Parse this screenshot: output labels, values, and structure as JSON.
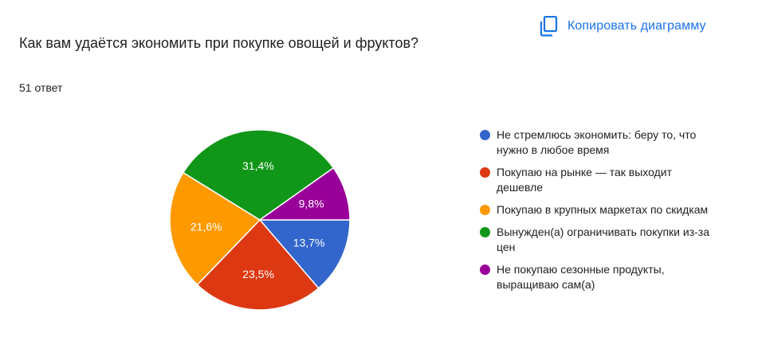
{
  "header": {
    "copy_label": "Копировать диаграмму",
    "copy_icon": "copy-icon"
  },
  "question": {
    "title": "Как вам удаётся экономить при покупке овощей и фруктов?",
    "responses": "51 ответ"
  },
  "chart_data": {
    "type": "pie",
    "legend_position": "right",
    "slices": [
      {
        "label": "Не стремлюсь экономить: беру то, что нужно в любое время",
        "value": 13.7,
        "value_label": "13,7%",
        "color": "#3366cc"
      },
      {
        "label": "Покупаю на рынке — так выходит дешевле",
        "value": 23.5,
        "value_label": "23,5%",
        "color": "#dc3912"
      },
      {
        "label": "Покупаю в крупных маркетах по скидкам",
        "value": 21.6,
        "value_label": "21,6%",
        "color": "#ff9900"
      },
      {
        "label": "Вынужден(а) ограничивать покупки из-за цен",
        "value": 31.4,
        "value_label": "31,4%",
        "color": "#109618"
      },
      {
        "label": "Не покупаю сезонные продукты, выращиваю сам(а)",
        "value": 9.8,
        "value_label": "9,8%",
        "color": "#990099"
      }
    ]
  }
}
